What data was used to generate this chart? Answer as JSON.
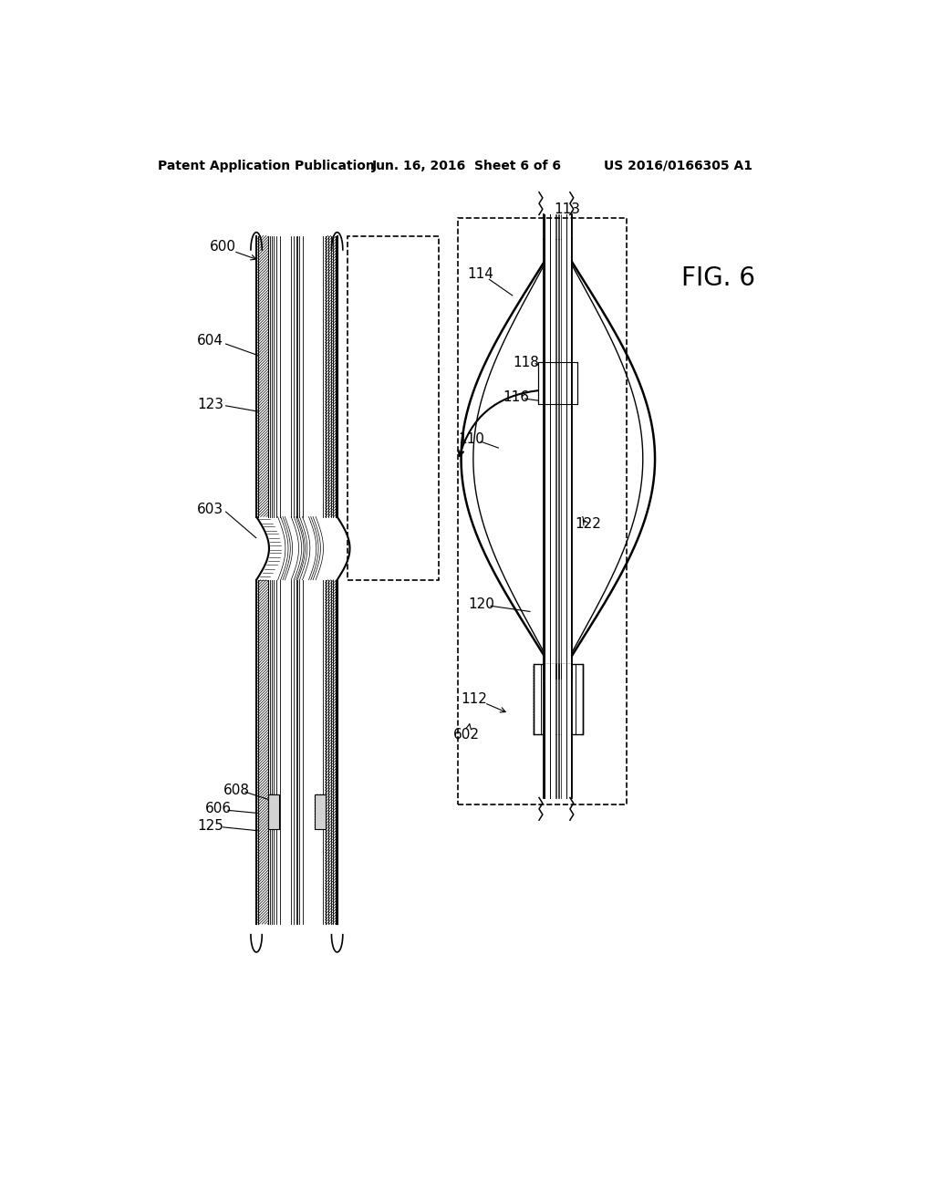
{
  "bg_color": "#ffffff",
  "header_left": "Patent Application Publication",
  "header_mid": "Jun. 16, 2016  Sheet 6 of 6",
  "header_right": "US 2016/0166305 A1",
  "fig_label": "FIG. 6",
  "label_600": "600",
  "label_604": "604",
  "label_123": "123",
  "label_603": "603",
  "label_608": "608",
  "label_606": "606",
  "label_125": "125",
  "label_113": "113",
  "label_114": "114",
  "label_110": "110",
  "label_118": "118",
  "label_116": "116",
  "label_122": "122",
  "label_120": "120",
  "label_112": "112",
  "label_602": "602"
}
